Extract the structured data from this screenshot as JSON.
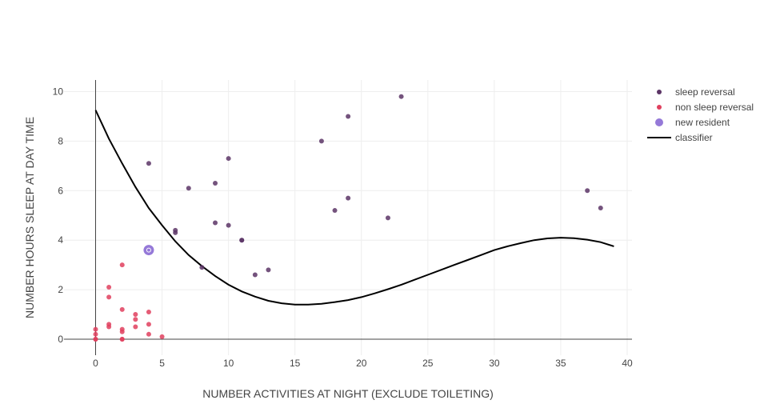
{
  "chart_data": {
    "type": "scatter",
    "xlabel": "NUMBER ACTIVITIES AT NIGHT (EXCLUDE TOILETING)",
    "ylabel": "NUMBER HOURS SLEEP AT DAY TIME",
    "xlim": [
      -2.4,
      40.5
    ],
    "ylim": [
      -0.7,
      10.45
    ],
    "x_ticks": [
      0,
      5,
      10,
      15,
      20,
      25,
      30,
      35,
      40
    ],
    "y_ticks": [
      0,
      2,
      4,
      6,
      8,
      10
    ],
    "grid": true,
    "legend_position": "top-right",
    "colors": {
      "sleep_reversal": "#5c3566",
      "non_sleep_reversal": "#e0405e",
      "new_resident": "#8a6ad4",
      "classifier": "#000000"
    },
    "series": [
      {
        "name": "sleep reversal",
        "mode": "markers",
        "points": [
          {
            "x": 4,
            "y": 7.1
          },
          {
            "x": 6,
            "y": 4.4
          },
          {
            "x": 6,
            "y": 4.3
          },
          {
            "x": 7,
            "y": 6.1
          },
          {
            "x": 8,
            "y": 2.9
          },
          {
            "x": 9,
            "y": 6.3
          },
          {
            "x": 9,
            "y": 4.7
          },
          {
            "x": 10,
            "y": 7.3
          },
          {
            "x": 10,
            "y": 4.6
          },
          {
            "x": 11,
            "y": 4.0
          },
          {
            "x": 11,
            "y": 4.0
          },
          {
            "x": 12,
            "y": 2.6
          },
          {
            "x": 13,
            "y": 2.8
          },
          {
            "x": 17,
            "y": 8.0
          },
          {
            "x": 18,
            "y": 5.2
          },
          {
            "x": 19,
            "y": 9.0
          },
          {
            "x": 19,
            "y": 5.7
          },
          {
            "x": 22,
            "y": 4.9
          },
          {
            "x": 23,
            "y": 9.8
          },
          {
            "x": 37,
            "y": 6.0
          },
          {
            "x": 38,
            "y": 5.3
          }
        ]
      },
      {
        "name": "non sleep reversal",
        "mode": "markers",
        "points": [
          {
            "x": 0,
            "y": 0.4
          },
          {
            "x": 0,
            "y": 0.2
          },
          {
            "x": 0,
            "y": 0.0
          },
          {
            "x": 0,
            "y": 0.0
          },
          {
            "x": 1,
            "y": 2.1
          },
          {
            "x": 1,
            "y": 1.7
          },
          {
            "x": 1,
            "y": 0.6
          },
          {
            "x": 1,
            "y": 0.5
          },
          {
            "x": 2,
            "y": 3.0
          },
          {
            "x": 2,
            "y": 1.2
          },
          {
            "x": 2,
            "y": 0.4
          },
          {
            "x": 2,
            "y": 0.3
          },
          {
            "x": 2,
            "y": 0.0
          },
          {
            "x": 2,
            "y": 0.0
          },
          {
            "x": 3,
            "y": 1.0
          },
          {
            "x": 3,
            "y": 0.8
          },
          {
            "x": 3,
            "y": 0.5
          },
          {
            "x": 4,
            "y": 1.1
          },
          {
            "x": 4,
            "y": 0.6
          },
          {
            "x": 4,
            "y": 0.2
          },
          {
            "x": 5,
            "y": 0.1
          }
        ]
      },
      {
        "name": "new resident",
        "mode": "markers",
        "points": [
          {
            "x": 4,
            "y": 3.6
          }
        ]
      },
      {
        "name": "classifier",
        "mode": "line",
        "points": [
          {
            "x": 0,
            "y": 9.25
          },
          {
            "x": 1,
            "y": 8.1
          },
          {
            "x": 2,
            "y": 7.1
          },
          {
            "x": 3,
            "y": 6.15
          },
          {
            "x": 4,
            "y": 5.3
          },
          {
            "x": 5,
            "y": 4.6
          },
          {
            "x": 6,
            "y": 3.95
          },
          {
            "x": 7,
            "y": 3.4
          },
          {
            "x": 8,
            "y": 2.95
          },
          {
            "x": 9,
            "y": 2.55
          },
          {
            "x": 10,
            "y": 2.2
          },
          {
            "x": 11,
            "y": 1.93
          },
          {
            "x": 12,
            "y": 1.72
          },
          {
            "x": 13,
            "y": 1.55
          },
          {
            "x": 14,
            "y": 1.45
          },
          {
            "x": 15,
            "y": 1.4
          },
          {
            "x": 16,
            "y": 1.4
          },
          {
            "x": 17,
            "y": 1.43
          },
          {
            "x": 18,
            "y": 1.5
          },
          {
            "x": 19,
            "y": 1.58
          },
          {
            "x": 20,
            "y": 1.7
          },
          {
            "x": 21,
            "y": 1.85
          },
          {
            "x": 22,
            "y": 2.02
          },
          {
            "x": 23,
            "y": 2.2
          },
          {
            "x": 24,
            "y": 2.4
          },
          {
            "x": 25,
            "y": 2.6
          },
          {
            "x": 26,
            "y": 2.8
          },
          {
            "x": 27,
            "y": 3.0
          },
          {
            "x": 28,
            "y": 3.2
          },
          {
            "x": 29,
            "y": 3.4
          },
          {
            "x": 30,
            "y": 3.6
          },
          {
            "x": 31,
            "y": 3.75
          },
          {
            "x": 32,
            "y": 3.88
          },
          {
            "x": 33,
            "y": 4.0
          },
          {
            "x": 34,
            "y": 4.07
          },
          {
            "x": 35,
            "y": 4.1
          },
          {
            "x": 36,
            "y": 4.08
          },
          {
            "x": 37,
            "y": 4.02
          },
          {
            "x": 38,
            "y": 3.92
          },
          {
            "x": 39,
            "y": 3.75
          }
        ]
      }
    ]
  }
}
